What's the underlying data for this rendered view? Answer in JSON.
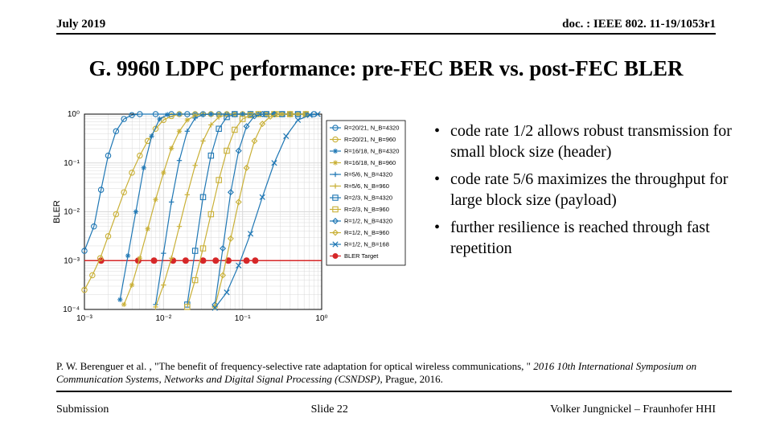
{
  "header": {
    "date": "July 2019",
    "doc": "doc. : IEEE 802. 11-19/1053r1"
  },
  "title": "G. 9960 LDPC performance: pre-FEC BER vs. post-FEC BLER",
  "bullets": [
    "code rate 1/2 allows robust transmission for small block size (header)",
    "code rate 5/6 maximizes the throughput for large block size (payload)",
    "further resilience is reached through fast repetition"
  ],
  "citation_plain": "P. W. Berenguer et al. , \"The benefit of frequency-selective rate adaptation for optical wireless communications, \" ",
  "citation_italic": "2016 10th International Symposium on Communication Systems, Networks and Digital Signal Processing (CSNDSP)",
  "citation_tail": ", Prague, 2016.",
  "footer": {
    "left": "Submission",
    "center": "Slide 22",
    "right": "Volker Jungnickel – Fraunhofer HHI"
  },
  "chart": {
    "ylabel": "BLER",
    "xlim_log": [
      -3,
      0
    ],
    "ylim_log": [
      -4,
      0
    ],
    "xticks": [
      "10⁻³",
      "10⁻²",
      "10⁻¹",
      "10⁰"
    ],
    "yticks": [
      "10⁻⁴",
      "10⁻³",
      "10⁻²",
      "10⁻¹",
      "10⁰"
    ],
    "grid_color": "#d9d9d9",
    "axis_color": "#000000",
    "bler_target_y": -3,
    "bler_target_color": "#d62728",
    "bler_target_dots_x": [
      -2.79,
      -2.32,
      -2.12,
      -1.88,
      -1.72,
      -1.5,
      -1.34,
      -1.18,
      -0.95,
      -0.84
    ],
    "legend": [
      "R=20/21, N_B=4320",
      "R=20/21, N_B=960",
      "R=16/18, N_B=4320",
      "R=16/18, N_B=960",
      "R=5/6, N_B=4320",
      "R=5/6, N_B=960",
      "R=2/3, N_B=4320",
      "R=2/3, N_B=960",
      "R=1/2, N_B=4320",
      "R=1/2, N_B=960",
      "R=1/2, N_B=168",
      "BLER Target"
    ],
    "series": [
      {
        "color": "#1f77b4",
        "marker": "circle",
        "fill": false,
        "points": [
          [
            -3,
            -2.8
          ],
          [
            -2.88,
            -2.3
          ],
          [
            -2.79,
            -1.55
          ],
          [
            -2.7,
            -0.85
          ],
          [
            -2.6,
            -0.35
          ],
          [
            -2.5,
            -0.1
          ],
          [
            -2.4,
            -0.02
          ],
          [
            -2.3,
            0
          ],
          [
            -2.1,
            0
          ],
          [
            -1.9,
            0
          ],
          [
            -1.7,
            0
          ],
          [
            -1.5,
            0
          ],
          [
            -1.3,
            0
          ],
          [
            -1.1,
            0
          ],
          [
            -0.9,
            0
          ],
          [
            -0.7,
            0
          ],
          [
            -0.5,
            0
          ],
          [
            -0.3,
            0
          ],
          [
            -0.1,
            0
          ]
        ]
      },
      {
        "color": "#c9b037",
        "marker": "circle",
        "fill": false,
        "points": [
          [
            -3,
            -3.6
          ],
          [
            -2.9,
            -3.3
          ],
          [
            -2.8,
            -2.95
          ],
          [
            -2.7,
            -2.5
          ],
          [
            -2.6,
            -2.05
          ],
          [
            -2.5,
            -1.6
          ],
          [
            -2.4,
            -1.2
          ],
          [
            -2.3,
            -0.85
          ],
          [
            -2.2,
            -0.55
          ],
          [
            -2.1,
            -0.3
          ],
          [
            -2.0,
            -0.12
          ],
          [
            -1.9,
            -0.04
          ],
          [
            -1.8,
            0
          ],
          [
            -1.6,
            0
          ],
          [
            -1.4,
            0
          ],
          [
            -1.2,
            0
          ],
          [
            -1.0,
            0
          ],
          [
            -0.8,
            0
          ],
          [
            -0.6,
            0
          ],
          [
            -0.4,
            0
          ],
          [
            -0.2,
            0
          ]
        ]
      },
      {
        "color": "#1f77b4",
        "marker": "star",
        "fill": false,
        "points": [
          [
            -2.55,
            -3.8
          ],
          [
            -2.45,
            -2.9
          ],
          [
            -2.35,
            -2.0
          ],
          [
            -2.25,
            -1.1
          ],
          [
            -2.15,
            -0.45
          ],
          [
            -2.05,
            -0.1
          ],
          [
            -1.95,
            -0.01
          ],
          [
            -1.8,
            0
          ],
          [
            -1.6,
            0
          ],
          [
            -1.4,
            0
          ],
          [
            -1.2,
            0
          ],
          [
            -1.0,
            0
          ],
          [
            -0.8,
            0
          ],
          [
            -0.6,
            0
          ],
          [
            -0.4,
            0
          ],
          [
            -0.2,
            0
          ]
        ]
      },
      {
        "color": "#c9b037",
        "marker": "star",
        "fill": false,
        "points": [
          [
            -2.5,
            -3.9
          ],
          [
            -2.4,
            -3.5
          ],
          [
            -2.3,
            -2.95
          ],
          [
            -2.2,
            -2.35
          ],
          [
            -2.1,
            -1.75
          ],
          [
            -2.0,
            -1.2
          ],
          [
            -1.9,
            -0.7
          ],
          [
            -1.8,
            -0.35
          ],
          [
            -1.7,
            -0.12
          ],
          [
            -1.6,
            -0.03
          ],
          [
            -1.5,
            0
          ],
          [
            -1.3,
            0
          ],
          [
            -1.1,
            0
          ],
          [
            -0.9,
            0
          ],
          [
            -0.7,
            0
          ],
          [
            -0.5,
            0
          ],
          [
            -0.3,
            0
          ]
        ]
      },
      {
        "color": "#1f77b4",
        "marker": "plus",
        "fill": false,
        "points": [
          [
            -2.1,
            -3.9
          ],
          [
            -2.0,
            -2.85
          ],
          [
            -1.9,
            -1.8
          ],
          [
            -1.8,
            -0.95
          ],
          [
            -1.7,
            -0.35
          ],
          [
            -1.6,
            -0.08
          ],
          [
            -1.5,
            -0.01
          ],
          [
            -1.4,
            0
          ],
          [
            -1.2,
            0
          ],
          [
            -1.0,
            0
          ],
          [
            -0.8,
            0
          ],
          [
            -0.6,
            0
          ],
          [
            -0.4,
            0
          ],
          [
            -0.2,
            0
          ]
        ]
      },
      {
        "color": "#c9b037",
        "marker": "plus",
        "fill": false,
        "points": [
          [
            -2.1,
            -3.95
          ],
          [
            -2.0,
            -3.5
          ],
          [
            -1.9,
            -2.95
          ],
          [
            -1.8,
            -2.3
          ],
          [
            -1.7,
            -1.65
          ],
          [
            -1.6,
            -1.05
          ],
          [
            -1.5,
            -0.55
          ],
          [
            -1.4,
            -0.22
          ],
          [
            -1.3,
            -0.06
          ],
          [
            -1.2,
            -0.01
          ],
          [
            -1.1,
            0
          ],
          [
            -0.9,
            0
          ],
          [
            -0.7,
            0
          ],
          [
            -0.5,
            0
          ],
          [
            -0.3,
            0
          ]
        ]
      },
      {
        "color": "#1f77b4",
        "marker": "square",
        "fill": false,
        "points": [
          [
            -1.7,
            -3.9
          ],
          [
            -1.6,
            -2.8
          ],
          [
            -1.5,
            -1.7
          ],
          [
            -1.4,
            -0.85
          ],
          [
            -1.3,
            -0.3
          ],
          [
            -1.2,
            -0.06
          ],
          [
            -1.1,
            0
          ],
          [
            -0.9,
            0
          ],
          [
            -0.7,
            0
          ],
          [
            -0.5,
            0
          ],
          [
            -0.3,
            0
          ]
        ]
      },
      {
        "color": "#c9b037",
        "marker": "square",
        "fill": false,
        "points": [
          [
            -1.7,
            -3.95
          ],
          [
            -1.6,
            -3.4
          ],
          [
            -1.5,
            -2.75
          ],
          [
            -1.4,
            -2.05
          ],
          [
            -1.3,
            -1.35
          ],
          [
            -1.2,
            -0.75
          ],
          [
            -1.1,
            -0.32
          ],
          [
            -1.0,
            -0.1
          ],
          [
            -0.9,
            -0.02
          ],
          [
            -0.8,
            0
          ],
          [
            -0.6,
            0
          ],
          [
            -0.4,
            0
          ],
          [
            -0.2,
            0
          ]
        ]
      },
      {
        "color": "#1f77b4",
        "marker": "diamond",
        "fill": false,
        "points": [
          [
            -1.35,
            -3.9
          ],
          [
            -1.25,
            -2.75
          ],
          [
            -1.15,
            -1.6
          ],
          [
            -1.05,
            -0.75
          ],
          [
            -0.95,
            -0.25
          ],
          [
            -0.85,
            -0.04
          ],
          [
            -0.75,
            0
          ],
          [
            -0.6,
            0
          ],
          [
            -0.4,
            0
          ],
          [
            -0.2,
            0
          ]
        ]
      },
      {
        "color": "#c9b037",
        "marker": "diamond",
        "fill": false,
        "points": [
          [
            -1.35,
            -3.95
          ],
          [
            -1.25,
            -3.3
          ],
          [
            -1.15,
            -2.55
          ],
          [
            -1.05,
            -1.8
          ],
          [
            -0.95,
            -1.1
          ],
          [
            -0.85,
            -0.55
          ],
          [
            -0.75,
            -0.2
          ],
          [
            -0.65,
            -0.05
          ],
          [
            -0.55,
            0
          ],
          [
            -0.4,
            0
          ],
          [
            -0.2,
            0
          ]
        ]
      },
      {
        "color": "#1f77b4",
        "marker": "x",
        "fill": false,
        "points": [
          [
            -1.35,
            -3.97
          ],
          [
            -1.2,
            -3.65
          ],
          [
            -1.05,
            -3.1
          ],
          [
            -0.9,
            -2.45
          ],
          [
            -0.75,
            -1.7
          ],
          [
            -0.6,
            -1.0
          ],
          [
            -0.45,
            -0.45
          ],
          [
            -0.3,
            -0.12
          ],
          [
            -0.15,
            -0.02
          ],
          [
            -0.05,
            0
          ]
        ]
      }
    ]
  }
}
